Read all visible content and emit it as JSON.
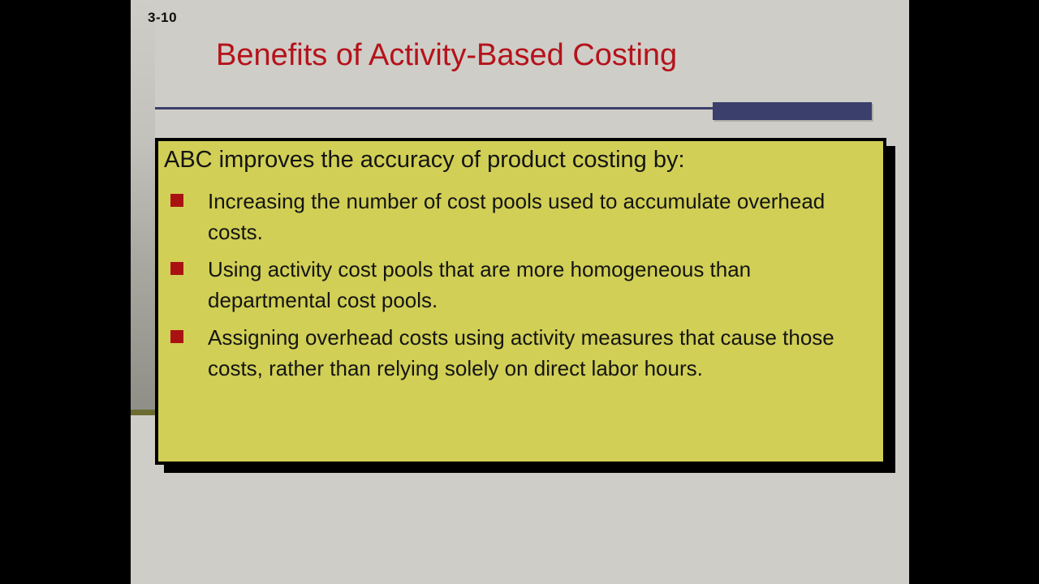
{
  "slide": {
    "number": "3-10",
    "title": "Benefits of Activity-Based Costing",
    "box": {
      "heading": "ABC improves the accuracy of product costing by:",
      "bullets": [
        "Increasing the number of cost pools used to accumulate overhead costs.",
        "Using activity cost pools that are more homogeneous than departmental cost pools.",
        "Assigning overhead costs using activity measures that cause those costs, rather than relying solely on direct labor hours."
      ]
    },
    "colors": {
      "letterbox": "#000000",
      "slide_background": "#cecdc7",
      "title_red": "#b5121b",
      "accent_blue": "#3b3f6b",
      "box_yellow": "#d1cf55",
      "bullet_red": "#aa1212",
      "edge_olive": "#6c6c31",
      "text_black": "#141414"
    }
  }
}
